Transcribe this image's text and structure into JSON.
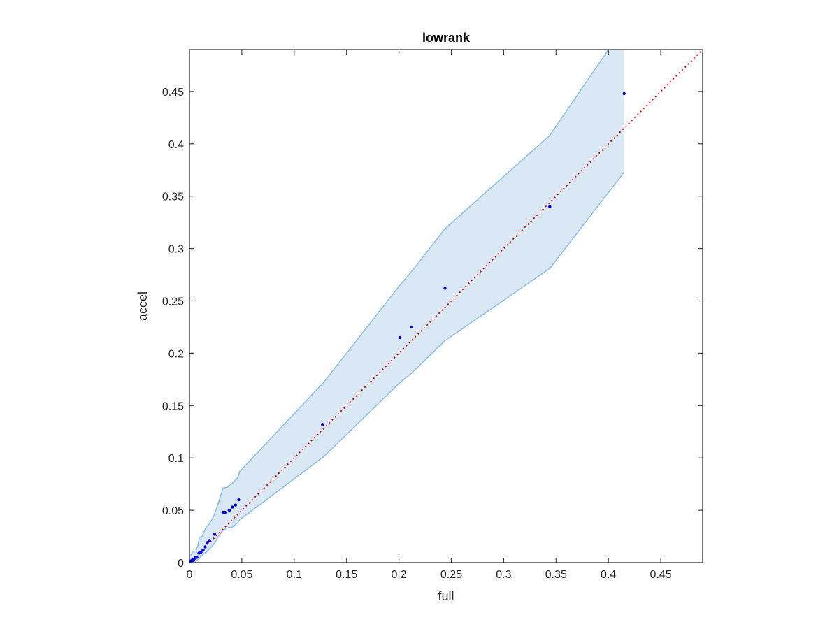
{
  "chart_data": {
    "type": "scatter",
    "title": "lowrank",
    "xlabel": "full",
    "ylabel": "accel",
    "xlim": [
      0,
      0.49
    ],
    "ylim": [
      0,
      0.49
    ],
    "xticks": [
      0,
      0.05,
      0.1,
      0.15,
      0.2,
      0.25,
      0.3,
      0.35,
      0.4,
      0.45
    ],
    "yticks": [
      0,
      0.05,
      0.1,
      0.15,
      0.2,
      0.25,
      0.3,
      0.35,
      0.4,
      0.45
    ],
    "xtick_labels": [
      "0",
      "0.05",
      "0.1",
      "0.15",
      "0.2",
      "0.25",
      "0.3",
      "0.35",
      "0.4",
      "0.45"
    ],
    "ytick_labels": [
      "0",
      "0.05",
      "0.1",
      "0.15",
      "0.2",
      "0.25",
      "0.3",
      "0.35",
      "0.4",
      "0.45"
    ],
    "grid": false,
    "box": true,
    "colors": {
      "points": "#0000e6",
      "reference_line": "#e60000",
      "band_fill": "#d9e8f4",
      "band_edge": "#8fc1e0",
      "axes": "#262626"
    },
    "reference_line": {
      "style": "dotted",
      "x": [
        0,
        0.49
      ],
      "y": [
        0,
        0.49
      ]
    },
    "band": {
      "upper": [
        [
          0.0005,
          0.006
        ],
        [
          0.0035,
          0.011
        ],
        [
          0.006,
          0.011
        ],
        [
          0.008,
          0.016
        ],
        [
          0.0095,
          0.024
        ],
        [
          0.012,
          0.025
        ],
        [
          0.016,
          0.034
        ],
        [
          0.019,
          0.037
        ],
        [
          0.023,
          0.044
        ],
        [
          0.027,
          0.055
        ],
        [
          0.032,
          0.071
        ],
        [
          0.036,
          0.072
        ],
        [
          0.041,
          0.076
        ],
        [
          0.046,
          0.081
        ],
        [
          0.048,
          0.087
        ],
        [
          0.128,
          0.172
        ],
        [
          0.201,
          0.265
        ],
        [
          0.212,
          0.278
        ],
        [
          0.244,
          0.319
        ],
        [
          0.344,
          0.408
        ],
        [
          0.4,
          0.49
        ]
      ],
      "lower": [
        [
          0.0005,
          0.0
        ],
        [
          0.0035,
          0.0
        ],
        [
          0.006,
          0.001
        ],
        [
          0.008,
          0.003
        ],
        [
          0.0095,
          0.004
        ],
        [
          0.012,
          0.007
        ],
        [
          0.016,
          0.01
        ],
        [
          0.019,
          0.013
        ],
        [
          0.023,
          0.017
        ],
        [
          0.027,
          0.024
        ],
        [
          0.032,
          0.031
        ],
        [
          0.036,
          0.033
        ],
        [
          0.041,
          0.034
        ],
        [
          0.046,
          0.038
        ],
        [
          0.048,
          0.041
        ],
        [
          0.128,
          0.101
        ],
        [
          0.201,
          0.172
        ],
        [
          0.212,
          0.181
        ],
        [
          0.244,
          0.212
        ],
        [
          0.344,
          0.281
        ],
        [
          0.415,
          0.373
        ]
      ],
      "right_edge_x": 0.415
    },
    "points": [
      {
        "x": 0.0005,
        "y": 0.0005
      },
      {
        "x": 0.001,
        "y": 0.001
      },
      {
        "x": 0.0015,
        "y": 0.0015
      },
      {
        "x": 0.002,
        "y": 0.002
      },
      {
        "x": 0.003,
        "y": 0.002
      },
      {
        "x": 0.004,
        "y": 0.003
      },
      {
        "x": 0.005,
        "y": 0.004
      },
      {
        "x": 0.006,
        "y": 0.005
      },
      {
        "x": 0.007,
        "y": 0.005
      },
      {
        "x": 0.009,
        "y": 0.009
      },
      {
        "x": 0.011,
        "y": 0.01
      },
      {
        "x": 0.013,
        "y": 0.012
      },
      {
        "x": 0.015,
        "y": 0.015
      },
      {
        "x": 0.017,
        "y": 0.019
      },
      {
        "x": 0.019,
        "y": 0.021
      },
      {
        "x": 0.024,
        "y": 0.027
      },
      {
        "x": 0.032,
        "y": 0.048
      },
      {
        "x": 0.034,
        "y": 0.048
      },
      {
        "x": 0.038,
        "y": 0.05
      },
      {
        "x": 0.041,
        "y": 0.053
      },
      {
        "x": 0.044,
        "y": 0.055
      },
      {
        "x": 0.047,
        "y": 0.06
      },
      {
        "x": 0.127,
        "y": 0.132
      },
      {
        "x": 0.201,
        "y": 0.215
      },
      {
        "x": 0.212,
        "y": 0.225
      },
      {
        "x": 0.244,
        "y": 0.262
      },
      {
        "x": 0.344,
        "y": 0.34
      },
      {
        "x": 0.415,
        "y": 0.448
      }
    ]
  }
}
